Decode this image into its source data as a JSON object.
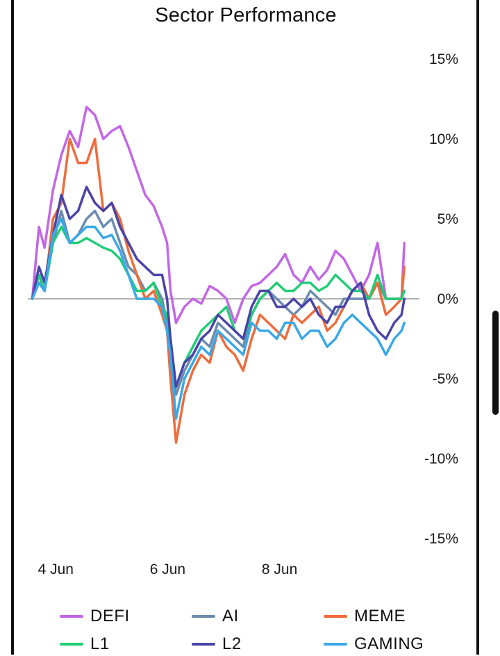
{
  "title": "Sector Performance",
  "chart_data": {
    "type": "line",
    "title": "Sector Performance",
    "xlabel": "",
    "ylabel": "",
    "x_tick_labels": [
      "4 Jun",
      "6 Jun",
      "8 Jun"
    ],
    "x_tick_positions": [
      3.8,
      5.8,
      7.8
    ],
    "y_tick_labels": [
      "15%",
      "10%",
      "5%",
      "0%",
      "-5%",
      "-10%",
      "-15%"
    ],
    "y_ticks": [
      15,
      10,
      5,
      0,
      -5,
      -10,
      -15
    ],
    "ylim": [
      -15,
      15
    ],
    "xlim": [
      3.3,
      10.3
    ],
    "zero_line": true,
    "grid": false,
    "legend_position": "bottom",
    "x": [
      3.38,
      3.5,
      3.6,
      3.75,
      3.9,
      4.05,
      4.2,
      4.35,
      4.5,
      4.65,
      4.8,
      4.95,
      5.1,
      5.25,
      5.4,
      5.55,
      5.7,
      5.79,
      5.85,
      5.95,
      6.1,
      6.25,
      6.4,
      6.55,
      6.7,
      6.85,
      7.0,
      7.15,
      7.3,
      7.45,
      7.6,
      7.75,
      7.9,
      8.05,
      8.2,
      8.35,
      8.5,
      8.65,
      8.8,
      8.95,
      9.1,
      9.25,
      9.4,
      9.55,
      9.7,
      9.85,
      9.98,
      10.03
    ],
    "series": [
      {
        "name": "DEFI",
        "color": "#c267e6",
        "values": [
          0.0,
          4.5,
          3.2,
          6.8,
          9.0,
          10.5,
          9.5,
          12.0,
          11.5,
          10.0,
          10.5,
          10.8,
          9.5,
          8.0,
          6.5,
          5.8,
          4.5,
          3.5,
          0.5,
          -1.5,
          -0.5,
          0.0,
          -0.3,
          0.8,
          0.5,
          0.0,
          -1.5,
          0.0,
          0.8,
          1.0,
          1.5,
          2.0,
          2.8,
          1.5,
          1.0,
          2.0,
          1.2,
          1.8,
          3.0,
          2.5,
          1.5,
          0.5,
          1.5,
          3.5,
          0.0,
          0.0,
          0.0,
          3.5
        ]
      },
      {
        "name": "AI",
        "color": "#6b8cae",
        "values": [
          0.0,
          1.5,
          0.5,
          3.5,
          5.5,
          3.5,
          4.0,
          5.0,
          5.5,
          4.5,
          5.0,
          3.5,
          2.0,
          1.5,
          0.5,
          1.0,
          0.0,
          -1.5,
          -3.0,
          -6.0,
          -4.5,
          -3.5,
          -2.5,
          -3.0,
          -1.5,
          -2.0,
          -2.5,
          -3.0,
          -1.0,
          0.0,
          0.5,
          0.0,
          -0.5,
          -1.0,
          -0.5,
          0.5,
          0.0,
          -0.5,
          -1.0,
          0.0,
          0.0,
          0.0,
          0.0,
          1.0,
          0.0,
          0.0,
          0.0,
          0.5
        ]
      },
      {
        "name": "MEME",
        "color": "#ee6c3c",
        "values": [
          0.0,
          1.0,
          0.5,
          5.0,
          6.0,
          10.0,
          8.5,
          8.5,
          10.0,
          5.5,
          6.0,
          5.0,
          3.0,
          1.5,
          0.0,
          0.5,
          -1.0,
          -2.0,
          -5.0,
          -9.0,
          -6.0,
          -4.5,
          -3.5,
          -4.0,
          -2.0,
          -3.0,
          -3.5,
          -4.5,
          -2.5,
          -1.0,
          -1.5,
          -2.0,
          -2.5,
          -1.0,
          -1.5,
          -1.0,
          -0.5,
          -2.0,
          -1.5,
          -0.5,
          0.5,
          1.0,
          0.0,
          1.0,
          -1.0,
          -0.5,
          0.0,
          2.0
        ]
      },
      {
        "name": "L1",
        "color": "#22cc77",
        "values": [
          0.0,
          1.5,
          0.5,
          3.5,
          4.5,
          3.5,
          3.5,
          3.8,
          3.5,
          3.2,
          3.0,
          2.5,
          1.5,
          0.5,
          0.5,
          1.0,
          -0.5,
          -1.0,
          -2.5,
          -5.5,
          -4.0,
          -3.0,
          -2.0,
          -1.5,
          -1.0,
          -0.5,
          -2.0,
          -2.5,
          -1.0,
          0.0,
          0.5,
          1.0,
          0.5,
          0.5,
          1.0,
          1.0,
          0.5,
          0.8,
          1.5,
          1.0,
          0.5,
          0.5,
          0.0,
          1.5,
          0.0,
          0.0,
          0.0,
          0.5
        ]
      },
      {
        "name": "L2",
        "color": "#4a44a8",
        "values": [
          0.0,
          2.0,
          1.0,
          4.0,
          6.5,
          5.0,
          5.5,
          7.0,
          6.0,
          5.5,
          6.0,
          4.5,
          3.5,
          2.5,
          2.0,
          1.5,
          1.5,
          0.0,
          -2.5,
          -5.5,
          -4.0,
          -3.5,
          -2.5,
          -2.0,
          -1.0,
          -1.5,
          -2.0,
          -2.5,
          -0.5,
          0.5,
          0.5,
          -0.5,
          -0.5,
          0.0,
          -0.5,
          0.0,
          -1.0,
          -1.5,
          -0.5,
          -0.5,
          0.5,
          1.0,
          -1.0,
          -2.0,
          -2.5,
          -1.5,
          -1.0,
          0.0
        ]
      },
      {
        "name": "GAMING",
        "color": "#3aa8e8",
        "values": [
          0.0,
          1.0,
          0.5,
          4.0,
          5.0,
          3.5,
          4.0,
          4.5,
          4.5,
          3.8,
          4.0,
          3.0,
          1.5,
          0.0,
          0.0,
          0.0,
          -0.5,
          -2.0,
          -3.5,
          -7.5,
          -5.0,
          -4.0,
          -3.0,
          -3.5,
          -2.0,
          -2.5,
          -3.0,
          -3.5,
          -1.5,
          -2.0,
          -2.0,
          -2.5,
          -1.5,
          -1.5,
          -2.5,
          -2.0,
          -2.0,
          -3.0,
          -2.5,
          -1.5,
          -1.0,
          -1.5,
          -2.0,
          -2.5,
          -3.5,
          -2.5,
          -2.0,
          -1.5
        ]
      }
    ]
  },
  "legend": [
    {
      "label": "DEFI",
      "color": "#c267e6"
    },
    {
      "label": "AI",
      "color": "#6b8cae"
    },
    {
      "label": "MEME",
      "color": "#ee6c3c"
    },
    {
      "label": "L1",
      "color": "#22cc77"
    },
    {
      "label": "L2",
      "color": "#4a44a8"
    },
    {
      "label": "GAMING",
      "color": "#3aa8e8"
    }
  ]
}
